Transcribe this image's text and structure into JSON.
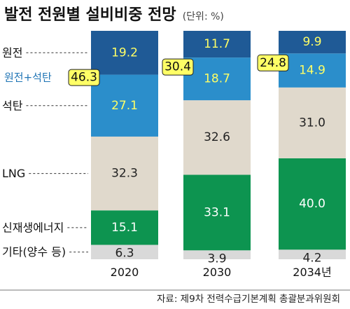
{
  "chart_data": {
    "type": "bar",
    "stacked": true,
    "percent": true,
    "title": "발전 전원별 설비비중 전망",
    "unit": "(단위: %)",
    "categories": [
      "2020",
      "2030",
      "2034년"
    ],
    "series": [
      {
        "name": "기타(양수 등)",
        "values": [
          6.3,
          3.9,
          4.2
        ],
        "color": "#d9d9d9",
        "label_color": "#222222"
      },
      {
        "name": "신재생에너지",
        "values": [
          15.1,
          33.1,
          40.0
        ],
        "color": "#0d9450",
        "label_color": "#ffffff"
      },
      {
        "name": "LNG",
        "values": [
          32.3,
          32.6,
          31.0
        ],
        "color": "#e0d9cc",
        "label_color": "#222222"
      },
      {
        "name": "석탄",
        "values": [
          27.1,
          18.7,
          14.9
        ],
        "color": "#2b8ecb",
        "label_color": "#ffff66"
      },
      {
        "name": "원전",
        "values": [
          19.2,
          11.7,
          9.9
        ],
        "color": "#1f5a96",
        "label_color": "#ffff66"
      }
    ],
    "labels": {
      "values": [
        [
          "6.3",
          "3.9",
          "4.2"
        ],
        [
          "15.1",
          "33.1",
          "40.0"
        ],
        [
          "32.3",
          "32.6",
          "31.0"
        ],
        [
          "27.1",
          "18.7",
          "14.9"
        ],
        [
          "19.2",
          "11.7",
          "9.9"
        ]
      ]
    },
    "combined": {
      "name": "원전+석탄",
      "values": [
        46.3,
        30.4,
        24.8
      ],
      "labels": [
        "46.3",
        "30.4",
        "24.8"
      ],
      "badge_color": "#ffff66",
      "name_color": "#1f74b5"
    },
    "ylim": [
      0,
      100
    ],
    "grid": false,
    "legend": "left"
  },
  "source": "자료: 제9차 전력수급기본계획 총괄분과위원회"
}
